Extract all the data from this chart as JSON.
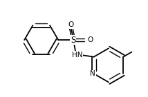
{
  "bg": "#ffffff",
  "lc": "#000000",
  "lw": 1.3,
  "lw2": 1.0,
  "doff": 0.018,
  "fs": 7.5,
  "figsize": [
    2.14,
    1.41
  ],
  "dpi": 100,
  "xlim": [
    -0.05,
    1.05
  ],
  "ylim": [
    0.1,
    0.95
  ]
}
